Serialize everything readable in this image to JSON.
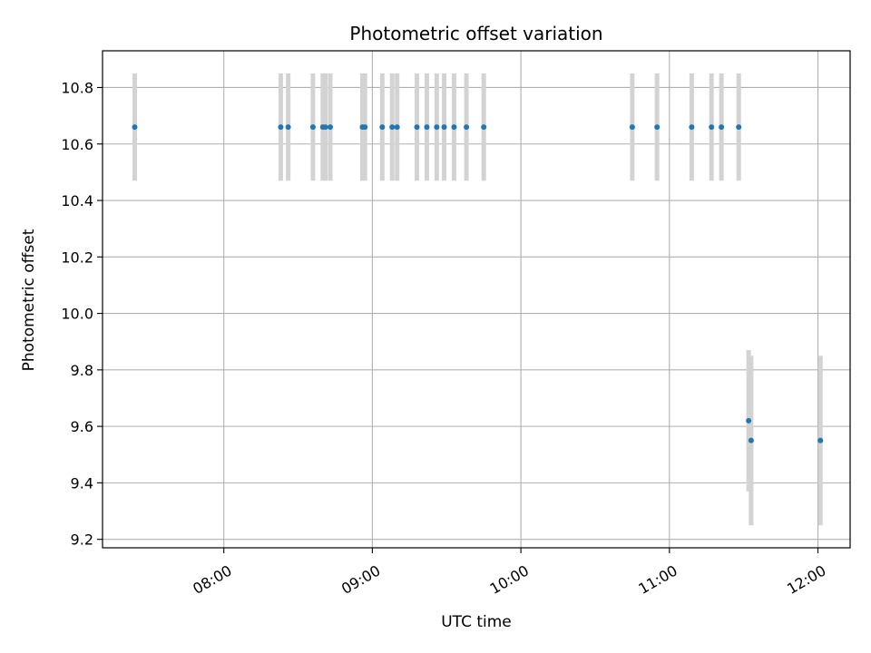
{
  "chart_data": {
    "type": "scatter",
    "title": "Photometric offset variation",
    "xlabel": "UTC time",
    "ylabel": "Photometric offset",
    "x_axis_kind": "time",
    "xlim": [
      "07:11",
      "12:13"
    ],
    "ylim": [
      9.17,
      10.93
    ],
    "xticks": [
      "08:00",
      "09:00",
      "10:00",
      "11:00",
      "12:00"
    ],
    "yticks": [
      9.2,
      9.4,
      9.6,
      9.8,
      10.0,
      10.2,
      10.4,
      10.6,
      10.8
    ],
    "ytick_labels": [
      "9.2",
      "9.4",
      "9.6",
      "9.8",
      "10.0",
      "10.2",
      "10.4",
      "10.6",
      "10.8"
    ],
    "grid": true,
    "legend": "none",
    "points": [
      {
        "x": "07:24",
        "y": 10.66,
        "err": 0.19
      },
      {
        "x": "08:23",
        "y": 10.66,
        "err": 0.19
      },
      {
        "x": "08:26",
        "y": 10.66,
        "err": 0.19
      },
      {
        "x": "08:36",
        "y": 10.66,
        "err": 0.19
      },
      {
        "x": "08:40",
        "y": 10.66,
        "err": 0.19
      },
      {
        "x": "08:41",
        "y": 10.66,
        "err": 0.19
      },
      {
        "x": "08:43",
        "y": 10.66,
        "err": 0.19
      },
      {
        "x": "08:56",
        "y": 10.66,
        "err": 0.19
      },
      {
        "x": "08:57",
        "y": 10.66,
        "err": 0.19
      },
      {
        "x": "09:04",
        "y": 10.66,
        "err": 0.19
      },
      {
        "x": "09:08",
        "y": 10.66,
        "err": 0.19
      },
      {
        "x": "09:10",
        "y": 10.66,
        "err": 0.19
      },
      {
        "x": "09:18",
        "y": 10.66,
        "err": 0.19
      },
      {
        "x": "09:22",
        "y": 10.66,
        "err": 0.19
      },
      {
        "x": "09:26",
        "y": 10.66,
        "err": 0.19
      },
      {
        "x": "09:29",
        "y": 10.66,
        "err": 0.19
      },
      {
        "x": "09:33",
        "y": 10.66,
        "err": 0.19
      },
      {
        "x": "09:38",
        "y": 10.66,
        "err": 0.19
      },
      {
        "x": "09:45",
        "y": 10.66,
        "err": 0.19
      },
      {
        "x": "10:45",
        "y": 10.66,
        "err": 0.19
      },
      {
        "x": "10:55",
        "y": 10.66,
        "err": 0.19
      },
      {
        "x": "11:09",
        "y": 10.66,
        "err": 0.19
      },
      {
        "x": "11:17",
        "y": 10.66,
        "err": 0.19
      },
      {
        "x": "11:21",
        "y": 10.66,
        "err": 0.19
      },
      {
        "x": "11:28",
        "y": 10.66,
        "err": 0.19
      },
      {
        "x": "11:32",
        "y": 9.62,
        "err": 0.25
      },
      {
        "x": "11:33",
        "y": 9.55,
        "err": 0.3
      },
      {
        "x": "12:01",
        "y": 9.55,
        "err": 0.3
      }
    ],
    "colors": {
      "marker": "#1f77b4",
      "errorbar": "#d3d3d3",
      "grid": "#b0b0b0"
    }
  }
}
